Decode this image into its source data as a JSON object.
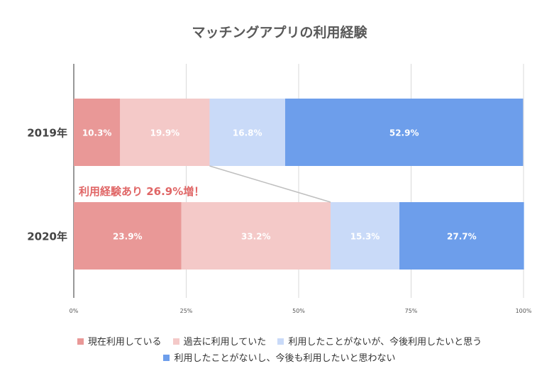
{
  "chart_data": {
    "type": "bar",
    "orientation": "horizontal",
    "stacked": "percent",
    "title": "マッチングアプリの利用経験",
    "categories": [
      "2019年",
      "2020年"
    ],
    "series": [
      {
        "name": "現在利用している",
        "color": "#e99897",
        "values": [
          10.3,
          23.9
        ],
        "labels": [
          "10.3%",
          "23.9%"
        ]
      },
      {
        "name": "過去に利用していた",
        "color": "#f4c9c8",
        "values": [
          19.9,
          33.2
        ],
        "labels": [
          "19.9%",
          "33.2%"
        ]
      },
      {
        "name": "利用したことがないが、今後利用したいと思う",
        "color": "#c9daf8",
        "values": [
          16.8,
          15.3
        ],
        "labels": [
          "16.8%",
          "15.3%"
        ]
      },
      {
        "name": "利用したことがないし、今後も利用したいと思わない",
        "color": "#6d9eeb",
        "values": [
          52.9,
          27.7
        ],
        "labels": [
          "52.9%",
          "27.7%"
        ]
      }
    ],
    "x_ticks": [
      "0%",
      "25%",
      "50%",
      "75%",
      "100%"
    ],
    "xlim": [
      0,
      100
    ],
    "grid": true,
    "legend_position": "bottom",
    "annotation": {
      "text": "利用経験あり 26.9%増！",
      "color": "#e06666"
    }
  }
}
